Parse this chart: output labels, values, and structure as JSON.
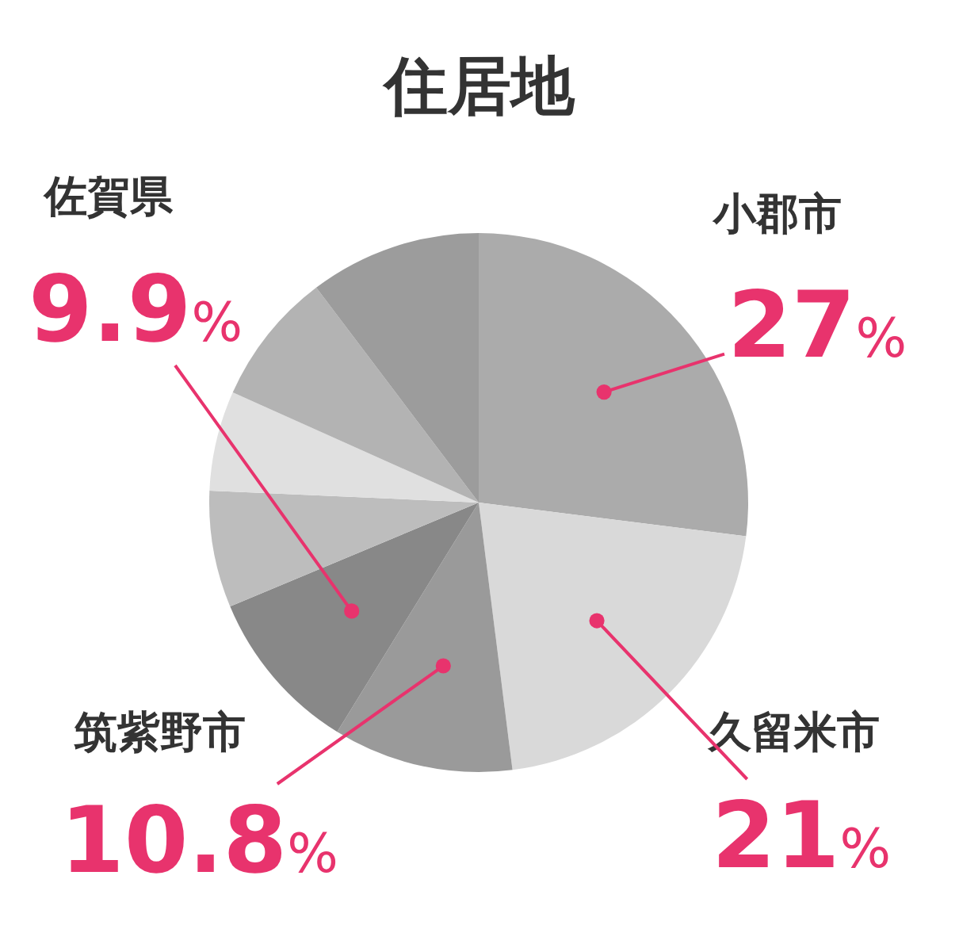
{
  "chart_data": {
    "type": "pie",
    "title": "住居地",
    "categories": [
      "小郡市",
      "久留米市",
      "筑紫野市",
      "佐賀県",
      null,
      null,
      null,
      null
    ],
    "values": [
      27,
      21,
      10.8,
      9.9,
      7,
      6,
      8,
      10.3
    ],
    "colors": [
      "#ababab",
      "#d9d9d9",
      "#9a9a9a",
      "#888888",
      "#bdbdbd",
      "#e0e0e0",
      "#b3b3b3",
      "#9c9c9c"
    ],
    "value_labels": [
      "27%",
      "21%",
      "10.8%",
      "9.9%",
      null,
      null,
      null,
      null
    ],
    "legend": false
  }
}
